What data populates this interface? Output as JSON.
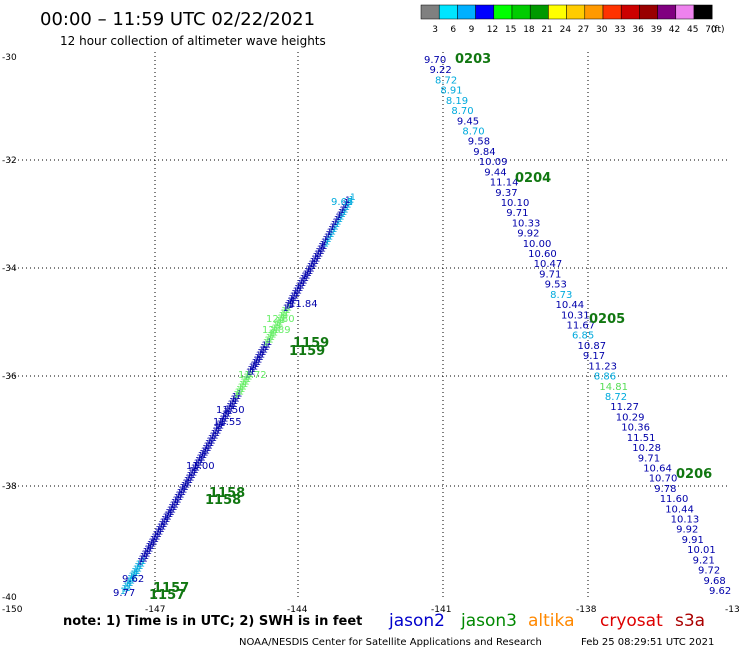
{
  "title": "00:00 – 11:59 UTC 02/22/2021",
  "subtitle": "12 hour collection of altimeter wave heights",
  "unit": "(ft)",
  "legend_labels": [
    "3",
    "6",
    "9",
    "12",
    "15",
    "18",
    "21",
    "24",
    "27",
    "30",
    "33",
    "36",
    "39",
    "42",
    "45",
    "70"
  ],
  "legend_colors": [
    "#808080",
    "#00e5ff",
    "#00b0ff",
    "#0000ff",
    "#00ff00",
    "#00cc00",
    "#009900",
    "#ffff00",
    "#ffcc00",
    "#ff9900",
    "#ff3300",
    "#cc0000",
    "#990000",
    "#800080",
    "#ee82ee",
    "#000000"
  ],
  "lat_labels": [
    "-30",
    "-32",
    "-34",
    "-36",
    "-38",
    "-40"
  ],
  "lon_labels": [
    "-150",
    "-147",
    "-144",
    "-141",
    "-138",
    "-13"
  ],
  "note": "note:  1) Time is in UTC;  2) SWH is in feet",
  "satellites": [
    {
      "name": "jason2",
      "color": "#0000cc"
    },
    {
      "name": "jason3",
      "color": "#008800"
    },
    {
      "name": "altika",
      "color": "#ff8800"
    },
    {
      "name": "cryosat",
      "color": "#dd0000"
    },
    {
      "name": "s3a",
      "color": "#aa0000"
    }
  ],
  "credit": "NOAA/NESDIS Center for Satellite Applications and Research",
  "timestamp": "Feb 25 08:29:51 UTC 2021",
  "right_track": {
    "time_labels": [
      "0203",
      "0204",
      "0205",
      "0206"
    ],
    "values": [
      [
        "9.70",
        "#0000aa"
      ],
      [
        "9.22",
        "#0000aa"
      ],
      [
        "8.72",
        "#00aadd"
      ],
      [
        "8.91",
        "#00aadd"
      ],
      [
        "8.19",
        "#00aadd"
      ],
      [
        "8.70",
        "#00aadd"
      ],
      [
        "9.45",
        "#0000aa"
      ],
      [
        "8.70",
        "#00aadd"
      ],
      [
        "9.58",
        "#0000aa"
      ],
      [
        "9.84",
        "#0000aa"
      ],
      [
        "10.09",
        "#0000aa"
      ],
      [
        "9.44",
        "#0000aa"
      ],
      [
        "11.14",
        "#0000aa"
      ],
      [
        "9.37",
        "#0000aa"
      ],
      [
        "10.10",
        "#0000aa"
      ],
      [
        "9.71",
        "#0000aa"
      ],
      [
        "10.33",
        "#0000aa"
      ],
      [
        "9.92",
        "#0000aa"
      ],
      [
        "10.00",
        "#0000aa"
      ],
      [
        "10.60",
        "#0000aa"
      ],
      [
        "10.47",
        "#0000aa"
      ],
      [
        "9.71",
        "#0000aa"
      ],
      [
        "9.53",
        "#0000aa"
      ],
      [
        "8.73",
        "#00aadd"
      ],
      [
        "10.44",
        "#0000aa"
      ],
      [
        "10.31",
        "#0000aa"
      ],
      [
        "11.67",
        "#0000aa"
      ],
      [
        "6.85",
        "#00aadd"
      ],
      [
        "10.87",
        "#0000aa"
      ],
      [
        "9.17",
        "#0000aa"
      ],
      [
        "11.23",
        "#0000aa"
      ],
      [
        "8.86",
        "#00aadd"
      ],
      [
        "14.81",
        "#55dd55"
      ],
      [
        "8.72",
        "#00aadd"
      ],
      [
        "11.27",
        "#0000aa"
      ],
      [
        "10.29",
        "#0000aa"
      ],
      [
        "10.36",
        "#0000aa"
      ],
      [
        "11.51",
        "#0000aa"
      ],
      [
        "10.28",
        "#0000aa"
      ],
      [
        "9.71",
        "#0000aa"
      ],
      [
        "10.64",
        "#0000aa"
      ],
      [
        "10.70",
        "#0000aa"
      ],
      [
        "9.78",
        "#0000aa"
      ],
      [
        "11.60",
        "#0000aa"
      ],
      [
        "10.44",
        "#0000aa"
      ],
      [
        "10.13",
        "#0000aa"
      ],
      [
        "9.92",
        "#0000aa"
      ],
      [
        "9.91",
        "#0000aa"
      ],
      [
        "10.01",
        "#0000aa"
      ],
      [
        "9.21",
        "#0000aa"
      ],
      [
        "9.72",
        "#0000aa"
      ],
      [
        "9.68",
        "#0000aa"
      ],
      [
        "9.62",
        "#0000aa"
      ]
    ]
  },
  "left_track": {
    "time_labels": [
      "1157",
      "1158",
      "1159"
    ],
    "visible_values": [
      "9.65",
      "12.80",
      "12.89",
      "11.72",
      "11.50",
      "11.55",
      "11.00",
      "9.62",
      "9.77",
      "11.84"
    ]
  }
}
